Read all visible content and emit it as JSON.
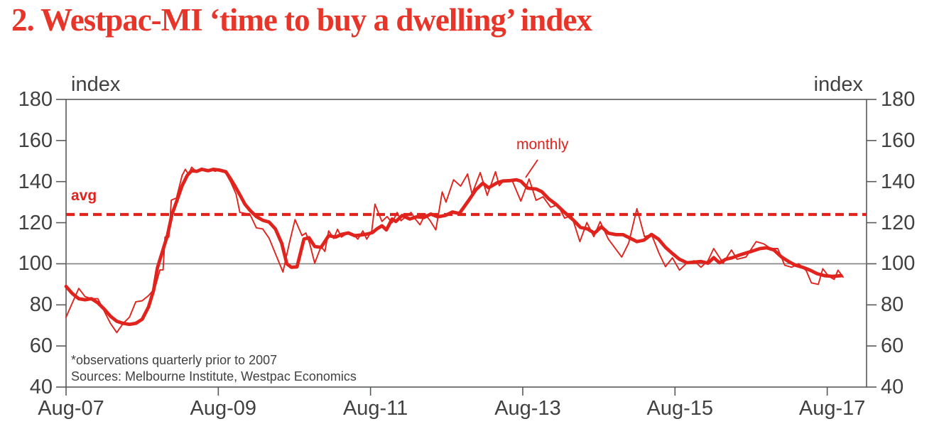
{
  "page": {
    "title": "2. Westpac-MI ‘time to buy a dwelling’ index"
  },
  "colors": {
    "title_red": "#e8352a",
    "series_red": "#e0231c",
    "text_dark": "#414042",
    "axis_gray": "#58595b",
    "reference_gray": "#808285",
    "background": "#ffffff"
  },
  "annotations": {
    "y_unit_left": "index",
    "y_unit_right": "index",
    "avg_label": "avg",
    "monthly_label": "monthly",
    "footnote_1": "*observations quarterly prior to 2007",
    "footnote_2": "Sources: Melbourne Institute, Westpac Economics"
  },
  "chart_data": {
    "type": "line",
    "title": "2. Westpac-MI ‘time to buy a dwelling’ index",
    "ylabel": "index",
    "ylim": [
      40,
      180
    ],
    "y_ticks": [
      180,
      160,
      140,
      120,
      100,
      80,
      60,
      40
    ],
    "x_axis": {
      "labels": [
        "Aug-07",
        "Aug-09",
        "Aug-11",
        "Aug-13",
        "Aug-15",
        "Aug-17"
      ],
      "tick_months": [
        0,
        24,
        48,
        72,
        96,
        120
      ],
      "domain_months": [
        0,
        126.2
      ],
      "note": "months measured from Aug-07"
    },
    "reference_lines": [
      {
        "name": "hundred",
        "value": 100,
        "style": "solid-gray"
      },
      {
        "name": "avg",
        "value": 124,
        "style": "dashed-red",
        "label": "avg"
      }
    ],
    "legend_position": "none",
    "grid": false,
    "series": [
      {
        "name": "monthly",
        "style": "thin",
        "color": "#e0231c",
        "points": [
          [
            0,
            74
          ],
          [
            1,
            81
          ],
          [
            2,
            88
          ],
          [
            3,
            84
          ],
          [
            4,
            83
          ],
          [
            5,
            83
          ],
          [
            6,
            77
          ],
          [
            7,
            71
          ],
          [
            8,
            66.5
          ],
          [
            9,
            71
          ],
          [
            10,
            74
          ],
          [
            11,
            81.5
          ],
          [
            12,
            82
          ],
          [
            13,
            84.5
          ],
          [
            14,
            88
          ],
          [
            14.8,
            97
          ],
          [
            15.3,
            97
          ],
          [
            15.6,
            113
          ],
          [
            16.2,
            113
          ],
          [
            16.6,
            131
          ],
          [
            17.4,
            132
          ],
          [
            18.3,
            143
          ],
          [
            18.8,
            146
          ],
          [
            19.3,
            143.5
          ],
          [
            19.8,
            147
          ],
          [
            20.5,
            145
          ],
          [
            21.3,
            146.5
          ],
          [
            22,
            145
          ],
          [
            22.8,
            146
          ],
          [
            23.5,
            145
          ],
          [
            24.3,
            146
          ],
          [
            25.2,
            144
          ],
          [
            26,
            139.5
          ],
          [
            26.8,
            134
          ],
          [
            27.4,
            125
          ],
          [
            28.3,
            124.5
          ],
          [
            29,
            124
          ],
          [
            30,
            117.5
          ],
          [
            31,
            117
          ],
          [
            32,
            112.5
          ],
          [
            33,
            105
          ],
          [
            34.2,
            96
          ],
          [
            35.2,
            110
          ],
          [
            36.1,
            121.5
          ],
          [
            37.2,
            113.7
          ],
          [
            37.8,
            115
          ],
          [
            38.4,
            110
          ],
          [
            39.2,
            100.3
          ],
          [
            40.2,
            108.4
          ],
          [
            40.8,
            106
          ],
          [
            41.4,
            116
          ],
          [
            42.2,
            112.3
          ],
          [
            42.8,
            116.8
          ],
          [
            43.4,
            113
          ],
          [
            44.5,
            115.2
          ],
          [
            45.2,
            114.6
          ],
          [
            46,
            112
          ],
          [
            46.8,
            116
          ],
          [
            47.4,
            112
          ],
          [
            48.2,
            116
          ],
          [
            48.7,
            129
          ],
          [
            49.8,
            120.6
          ],
          [
            50.6,
            123
          ],
          [
            51.4,
            120
          ],
          [
            52.2,
            125
          ],
          [
            52.8,
            121
          ],
          [
            53.6,
            123
          ],
          [
            54.4,
            125
          ],
          [
            55,
            122
          ],
          [
            55.8,
            119
          ],
          [
            56.6,
            124
          ],
          [
            57.4,
            121
          ],
          [
            58.3,
            116.5
          ],
          [
            59.3,
            135
          ],
          [
            59.9,
            130
          ],
          [
            61.1,
            140.9
          ],
          [
            62.2,
            137.8
          ],
          [
            63.3,
            143.7
          ],
          [
            64,
            134
          ],
          [
            65.3,
            144.4
          ],
          [
            66.4,
            133.3
          ],
          [
            67.7,
            144.8
          ],
          [
            68.3,
            138
          ],
          [
            69,
            140.5
          ],
          [
            70.4,
            140
          ],
          [
            71.7,
            130.5
          ],
          [
            73,
            141.3
          ],
          [
            74.1,
            130.9
          ],
          [
            75.2,
            132.6
          ],
          [
            76.4,
            127.5
          ],
          [
            77.5,
            128.8
          ],
          [
            78.6,
            122.2
          ],
          [
            79.7,
            123.5
          ],
          [
            81,
            110.8
          ],
          [
            82.1,
            120.1
          ],
          [
            83.2,
            113.2
          ],
          [
            84.2,
            120.5
          ],
          [
            85.5,
            112
          ],
          [
            87.6,
            103.3
          ],
          [
            88.7,
            110.1
          ],
          [
            90,
            126.8
          ],
          [
            91.2,
            113.2
          ],
          [
            92.3,
            114.2
          ],
          [
            93.5,
            105
          ],
          [
            94.5,
            98.6
          ],
          [
            95.6,
            102.9
          ],
          [
            96.7,
            96.9
          ],
          [
            97.9,
            100.5
          ],
          [
            99,
            101.5
          ],
          [
            100.1,
            98.3
          ],
          [
            101.2,
            101.5
          ],
          [
            102.1,
            107.4
          ],
          [
            103.6,
            100.3
          ],
          [
            104.9,
            106.7
          ],
          [
            105.8,
            102.2
          ],
          [
            107.2,
            103.3
          ],
          [
            108.8,
            110.8
          ],
          [
            110,
            109.7
          ],
          [
            111.1,
            107.4
          ],
          [
            112.2,
            107.4
          ],
          [
            113.3,
            99.3
          ],
          [
            114.4,
            98.3
          ],
          [
            115.5,
            100
          ],
          [
            116.7,
            96.6
          ],
          [
            117.5,
            90.7
          ],
          [
            118.6,
            90
          ],
          [
            119.3,
            97.6
          ],
          [
            120.2,
            94
          ],
          [
            121.1,
            92.4
          ],
          [
            121.7,
            96.9
          ],
          [
            122.5,
            93.5
          ]
        ]
      },
      {
        "name": "smoothed",
        "style": "thick",
        "color": "#e0231c",
        "points": [
          [
            0,
            89
          ],
          [
            1,
            85.5
          ],
          [
            2,
            83
          ],
          [
            3,
            82.5
          ],
          [
            4,
            83
          ],
          [
            5,
            81
          ],
          [
            6,
            78
          ],
          [
            7,
            74.5
          ],
          [
            8,
            72
          ],
          [
            9,
            71
          ],
          [
            10,
            70.5
          ],
          [
            11,
            71
          ],
          [
            12,
            73
          ],
          [
            13,
            79
          ],
          [
            13.8,
            87
          ],
          [
            14.4,
            98
          ],
          [
            15.3,
            107
          ],
          [
            16,
            114
          ],
          [
            16.7,
            124
          ],
          [
            17.5,
            131
          ],
          [
            18.3,
            138
          ],
          [
            19.1,
            143
          ],
          [
            19.8,
            145.3
          ],
          [
            20.6,
            145
          ],
          [
            21.4,
            146
          ],
          [
            22.4,
            145.3
          ],
          [
            23.2,
            146
          ],
          [
            24.2,
            145.6
          ],
          [
            25.2,
            144.8
          ],
          [
            26,
            141
          ],
          [
            26.6,
            138
          ],
          [
            27.5,
            133
          ],
          [
            28.2,
            129
          ],
          [
            29,
            126
          ],
          [
            30,
            123
          ],
          [
            31,
            121.2
          ],
          [
            32,
            120.3
          ],
          [
            33,
            117
          ],
          [
            34,
            110
          ],
          [
            34.8,
            100
          ],
          [
            35.5,
            98.3
          ],
          [
            36.4,
            98.5
          ],
          [
            37.5,
            112
          ],
          [
            38.3,
            112.7
          ],
          [
            39.2,
            108.4
          ],
          [
            40.2,
            108
          ],
          [
            41.4,
            113.7
          ],
          [
            42.5,
            113
          ],
          [
            43.5,
            114.4
          ],
          [
            44.5,
            115
          ],
          [
            45.5,
            113.7
          ],
          [
            46.5,
            114
          ],
          [
            47.5,
            114.5
          ],
          [
            48.3,
            115.2
          ],
          [
            49,
            117
          ],
          [
            49.8,
            118.5
          ],
          [
            50.5,
            116.5
          ],
          [
            51.4,
            121.8
          ],
          [
            52,
            120.6
          ],
          [
            53,
            123.5
          ],
          [
            54.2,
            121.8
          ],
          [
            55.3,
            122.9
          ],
          [
            56.4,
            122.5
          ],
          [
            57.5,
            124.2
          ],
          [
            58.6,
            122.9
          ],
          [
            59.8,
            123.5
          ],
          [
            60.9,
            125.2
          ],
          [
            62,
            124.5
          ],
          [
            63.5,
            131
          ],
          [
            64.6,
            136
          ],
          [
            65.7,
            139.2
          ],
          [
            66.6,
            137
          ],
          [
            68,
            139.5
          ],
          [
            68.9,
            140.3
          ],
          [
            70,
            140.5
          ],
          [
            71,
            140.9
          ],
          [
            71.7,
            140.2
          ],
          [
            72.8,
            136.8
          ],
          [
            74.1,
            136.4
          ],
          [
            75,
            135.1
          ],
          [
            76.1,
            131.6
          ],
          [
            77.3,
            128.8
          ],
          [
            78.6,
            125
          ],
          [
            80,
            121.2
          ],
          [
            81.1,
            117.7
          ],
          [
            82.2,
            117
          ],
          [
            83.3,
            114.9
          ],
          [
            84.4,
            118
          ],
          [
            85.5,
            114.9
          ],
          [
            86.7,
            114.2
          ],
          [
            87.8,
            114.2
          ],
          [
            88.9,
            112.5
          ],
          [
            90,
            110.8
          ],
          [
            91.1,
            111.5
          ],
          [
            92.3,
            114.3
          ],
          [
            93.4,
            112
          ],
          [
            94.5,
            108
          ],
          [
            95.6,
            105
          ],
          [
            96.7,
            102.2
          ],
          [
            97.9,
            100.5
          ],
          [
            99,
            100.8
          ],
          [
            100.1,
            101.1
          ],
          [
            101.2,
            100.3
          ],
          [
            102.1,
            103
          ],
          [
            103,
            100.5
          ],
          [
            104,
            102.2
          ],
          [
            105,
            102.9
          ],
          [
            106.4,
            104.5
          ],
          [
            108,
            106
          ],
          [
            109.4,
            107.4
          ],
          [
            110.5,
            107.8
          ],
          [
            111.6,
            106.7
          ],
          [
            112.8,
            103.3
          ],
          [
            113.9,
            101.1
          ],
          [
            115,
            99.3
          ],
          [
            116.1,
            98.3
          ],
          [
            117.3,
            96.9
          ],
          [
            118.4,
            95.2
          ],
          [
            119.6,
            94.2
          ],
          [
            120.8,
            93.9
          ],
          [
            122.2,
            94.2
          ]
        ]
      }
    ]
  }
}
